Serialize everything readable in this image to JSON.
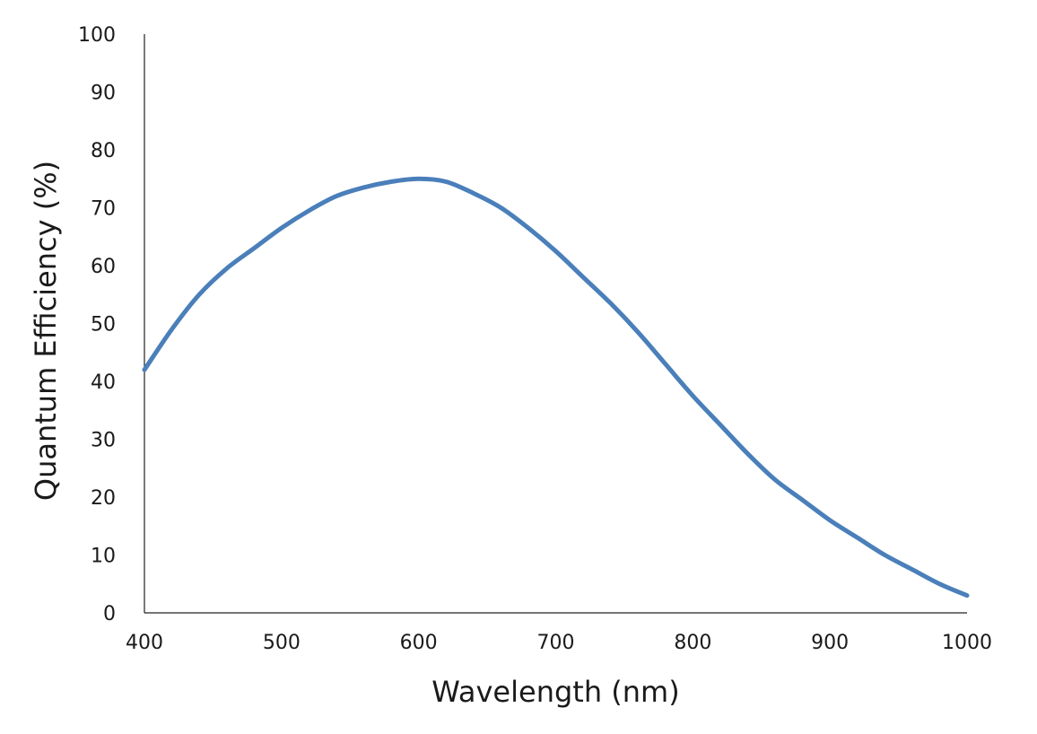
{
  "chart_data": {
    "type": "line",
    "title": "",
    "xlabel": "Wavelength (nm)",
    "ylabel": "Quantum Efficiency (%)",
    "xlim": [
      400,
      1000
    ],
    "ylim": [
      0,
      100
    ],
    "x_ticks": [
      400,
      500,
      600,
      700,
      800,
      900,
      1000
    ],
    "y_ticks": [
      0,
      10,
      20,
      30,
      40,
      50,
      60,
      70,
      80,
      90,
      100
    ],
    "grid": false,
    "legend": "none",
    "colors": {
      "line": "#4a7fba",
      "axis": "#222222"
    },
    "series": [
      {
        "x": [
          400,
          420,
          440,
          460,
          480,
          500,
          520,
          540,
          560,
          580,
          600,
          620,
          640,
          660,
          680,
          700,
          720,
          740,
          760,
          780,
          800,
          820,
          840,
          860,
          880,
          900,
          920,
          940,
          960,
          980,
          1000
        ],
        "values": [
          42,
          49,
          55,
          59.5,
          63,
          66.5,
          69.5,
          72,
          73.5,
          74.5,
          75,
          74.5,
          72.5,
          70,
          66.5,
          62.5,
          58,
          53.5,
          48.5,
          43,
          37.5,
          32.5,
          27.5,
          23,
          19.5,
          16,
          13,
          10,
          7.5,
          5,
          3
        ]
      }
    ]
  }
}
